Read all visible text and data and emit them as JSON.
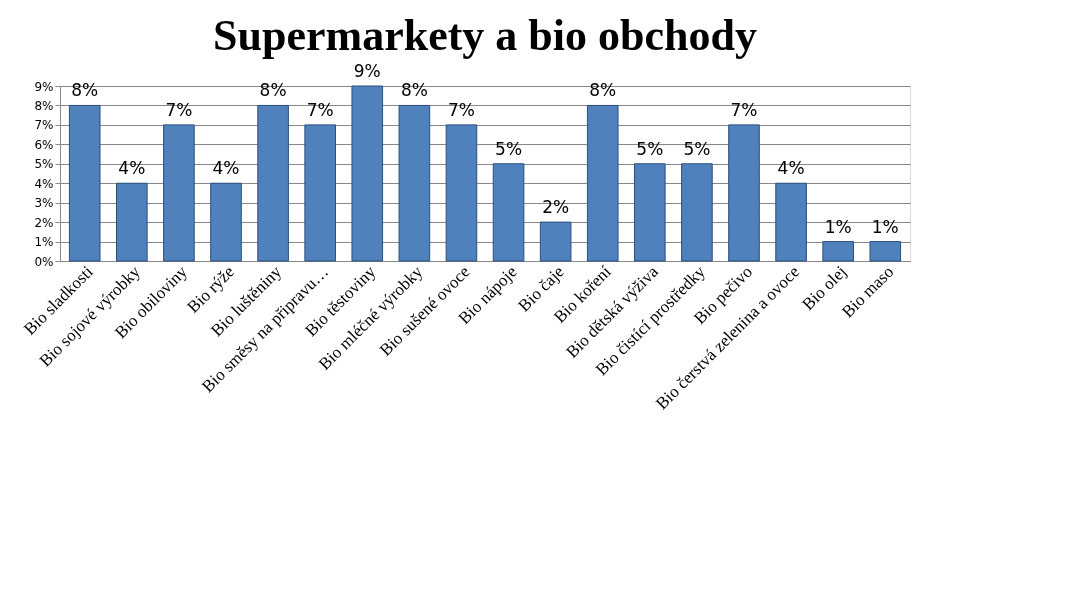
{
  "chart_data": {
    "type": "bar",
    "title": "Supermarkety a bio obchody",
    "categories": [
      "Bio sladkosti",
      "Bio sojové výrobky",
      "Bio obiloviny",
      "Bio rýže",
      "Bio luštěniny",
      "Bio směsy na připravu…",
      "Bio těstoviny",
      "Bio mléčné výrobky",
      "Bio sušené ovoce",
      "Bio nápoje",
      "Bio čaje",
      "Bio koření",
      "Bio dětská výživa",
      "Bio čistící prostředky",
      "Bio pečivo",
      "Bio čerstvá zelenina a ovoce",
      "Bio olej",
      "Bio maso"
    ],
    "values": [
      8,
      4,
      7,
      4,
      8,
      7,
      9,
      8,
      7,
      5,
      2,
      8,
      5,
      5,
      7,
      4,
      1,
      1
    ],
    "value_labels": [
      "8%",
      "4%",
      "7%",
      "4%",
      "8%",
      "7%",
      "9%",
      "8%",
      "7%",
      "5%",
      "2%",
      "8%",
      "5%",
      "5%",
      "7%",
      "4%",
      "1%",
      "1%"
    ],
    "color": "#4f81bd",
    "ylim": [
      0,
      9
    ],
    "yticks": [
      {
        "value": 0,
        "label": "0%"
      },
      {
        "value": 1,
        "label": "1%"
      },
      {
        "value": 2,
        "label": "2%"
      },
      {
        "value": 3,
        "label": "3%"
      },
      {
        "value": 4,
        "label": "4%"
      },
      {
        "value": 5,
        "label": "5%"
      },
      {
        "value": 6,
        "label": "6%"
      },
      {
        "value": 7,
        "label": "7%"
      },
      {
        "value": 8,
        "label": "8%"
      },
      {
        "value": 9,
        "label": "9%"
      }
    ],
    "grid": "y"
  }
}
